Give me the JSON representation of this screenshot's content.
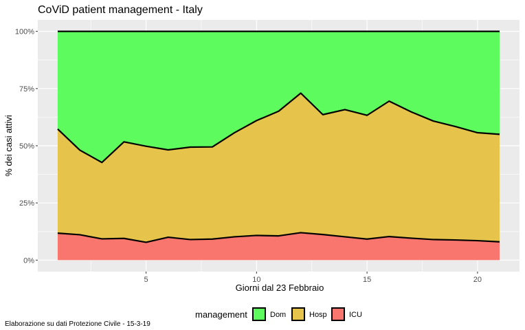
{
  "chart_data": {
    "type": "area",
    "stacked": true,
    "normalized": true,
    "title": "CoViD patient management - Italy",
    "xlabel": "Giorni dal 23 Febbraio",
    "ylabel": "% dei casi attivi",
    "caption": "Elaborazione su dati Protezione Civile - 15-3-19",
    "x": [
      1,
      2,
      3,
      4,
      5,
      6,
      7,
      8,
      9,
      10,
      11,
      12,
      13,
      14,
      15,
      16,
      17,
      18,
      19,
      20,
      21
    ],
    "xlim": [
      0.1,
      21.9
    ],
    "ylim": [
      -0.05,
      1.05
    ],
    "xticks": [
      5,
      10,
      15,
      20
    ],
    "xtick_labels": [
      "5",
      "10",
      "15",
      "20"
    ],
    "yticks": [
      0,
      0.25,
      0.5,
      0.75,
      1.0
    ],
    "ytick_labels": [
      "0%",
      "25%",
      "50%",
      "75%",
      "100%"
    ],
    "grid": true,
    "legend": {
      "title": "management",
      "position": "bottom",
      "entries": [
        "Dom",
        "Hosp",
        "ICU"
      ]
    },
    "series": [
      {
        "name": "ICU",
        "color": "#F8766D",
        "values": [
          0.118,
          0.111,
          0.093,
          0.095,
          0.078,
          0.1,
          0.09,
          0.092,
          0.102,
          0.108,
          0.106,
          0.12,
          0.112,
          0.102,
          0.092,
          0.103,
          0.096,
          0.09,
          0.088,
          0.085,
          0.08
        ]
      },
      {
        "name": "Hosp",
        "color": "#E6C34A",
        "values": [
          0.455,
          0.37,
          0.334,
          0.422,
          0.42,
          0.382,
          0.404,
          0.403,
          0.455,
          0.502,
          0.545,
          0.61,
          0.524,
          0.556,
          0.541,
          0.592,
          0.552,
          0.518,
          0.496,
          0.472,
          0.47
        ]
      },
      {
        "name": "Dom",
        "color": "#5DFB5D",
        "values": [
          0.427,
          0.519,
          0.573,
          0.483,
          0.502,
          0.518,
          0.506,
          0.505,
          0.443,
          0.39,
          0.349,
          0.27,
          0.364,
          0.342,
          0.367,
          0.305,
          0.352,
          0.392,
          0.416,
          0.443,
          0.45
        ]
      }
    ]
  }
}
